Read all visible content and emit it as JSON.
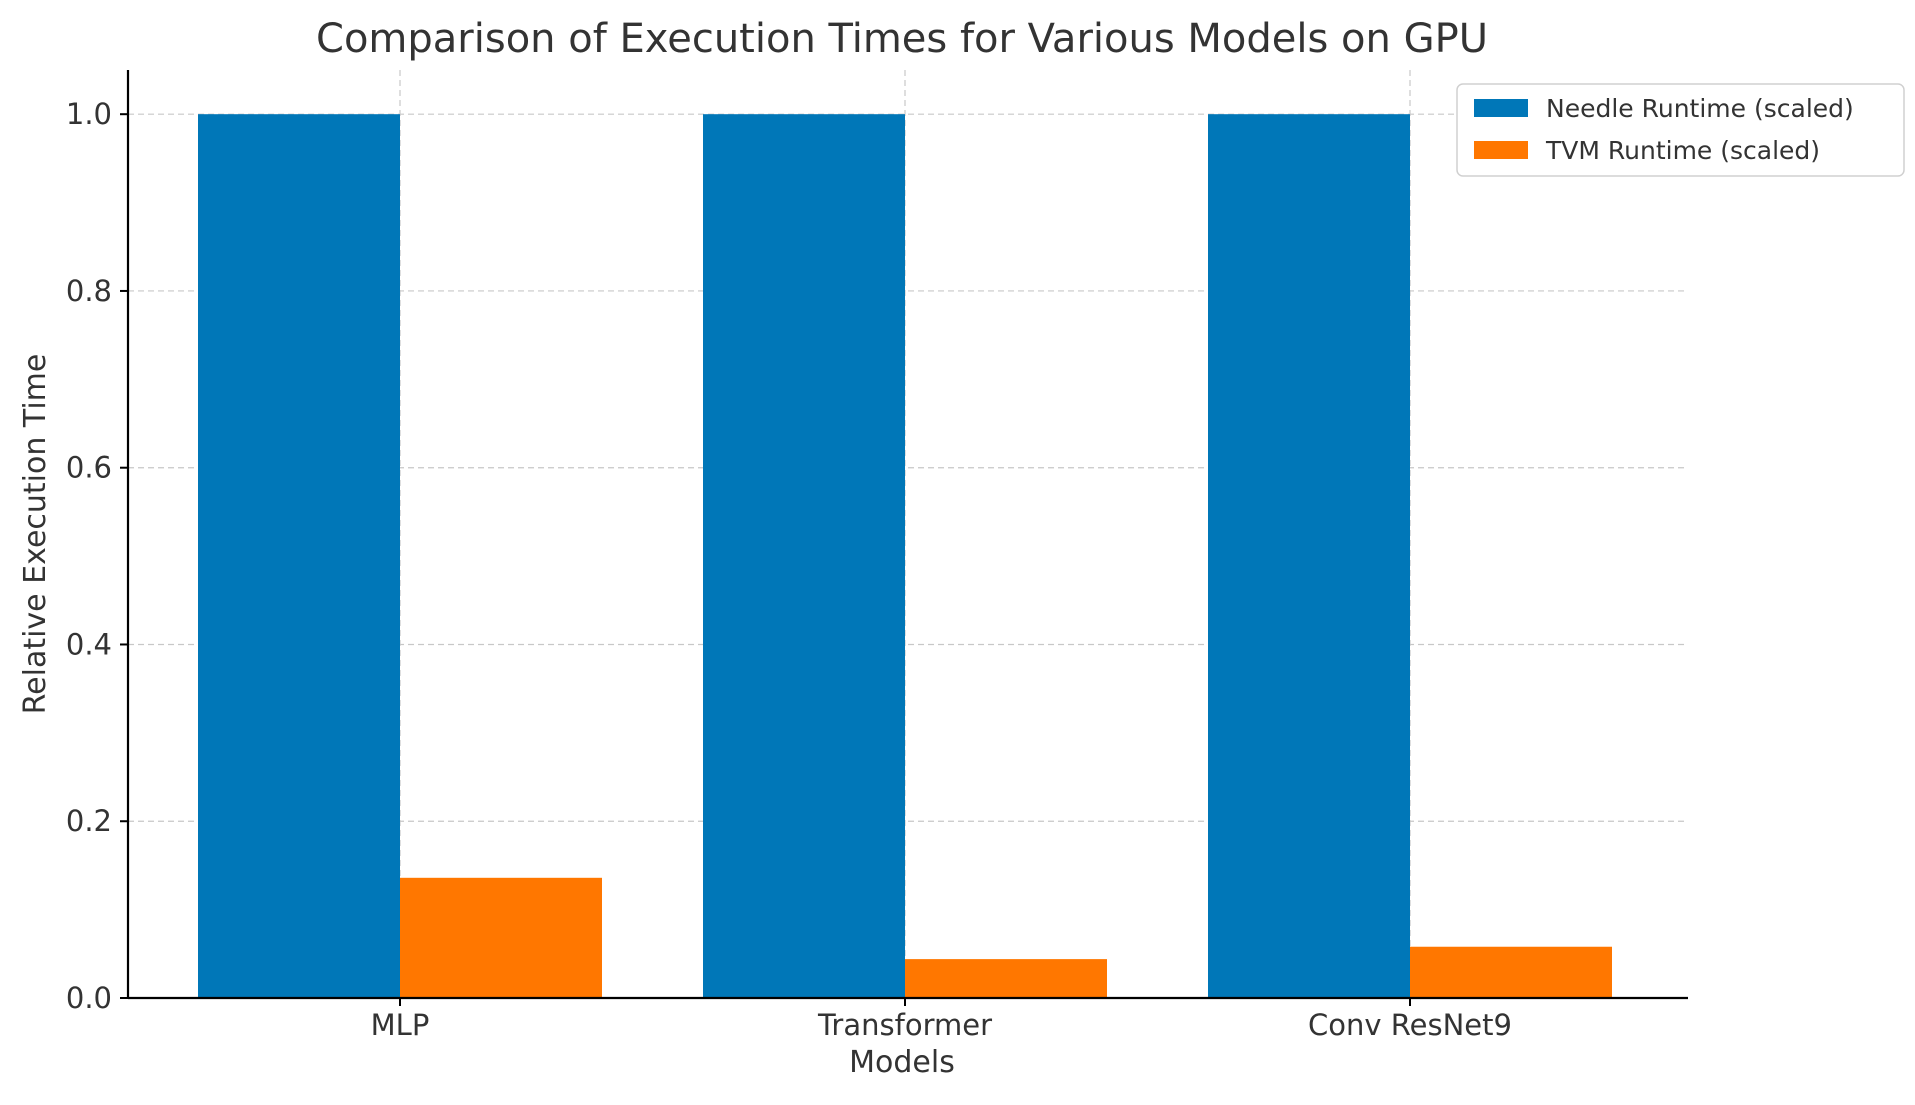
{
  "chart_data": {
    "type": "bar",
    "title": "Comparison of Execution Times for Various Models on GPU",
    "xlabel": "Models",
    "ylabel": "Relative Execution Time",
    "categories": [
      "MLP",
      "Transformer",
      "Conv ResNet9"
    ],
    "series": [
      {
        "name": "Needle Runtime (scaled)",
        "color": "#0077b8",
        "values": [
          1.0,
          1.0,
          1.0
        ]
      },
      {
        "name": "TVM Runtime (scaled)",
        "color": "#ff7700",
        "values": [
          0.136,
          0.044,
          0.058
        ]
      }
    ],
    "ylim": [
      0,
      1.05
    ],
    "yticks": [
      "0.0",
      "0.2",
      "0.4",
      "0.6",
      "0.8",
      "1.0"
    ],
    "grid": true,
    "legend_position": "top-right"
  }
}
